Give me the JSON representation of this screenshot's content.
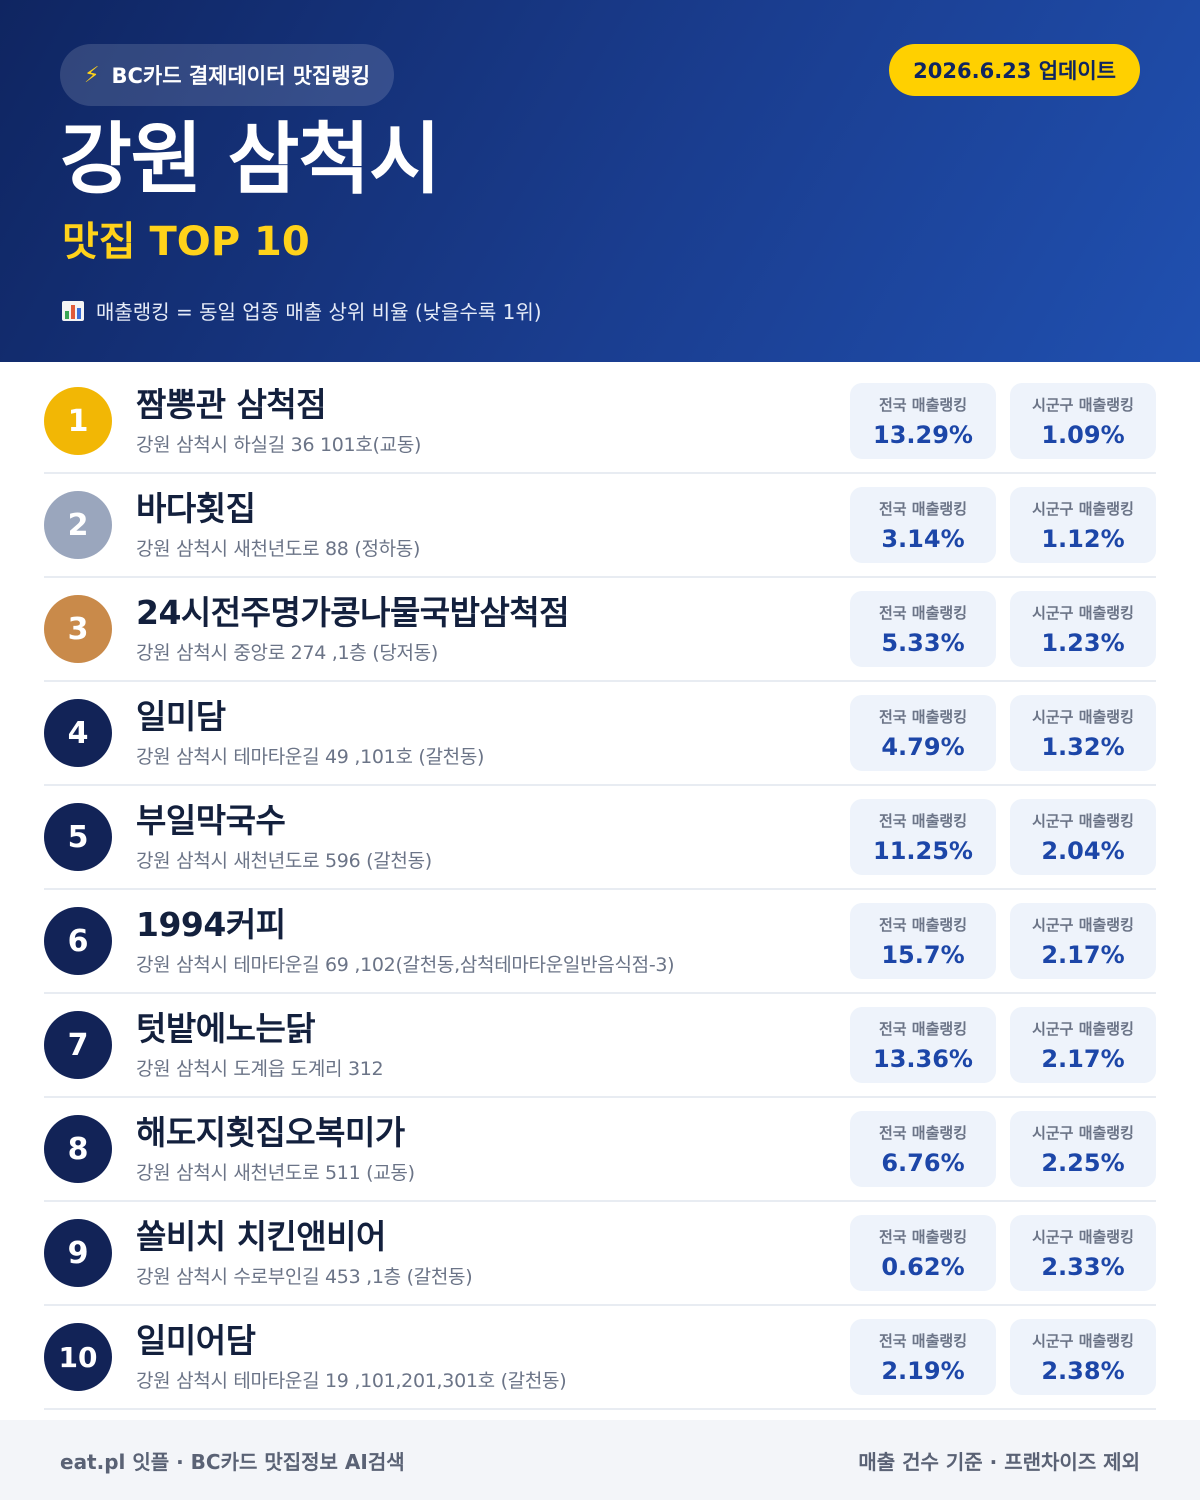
{
  "header": {
    "badge": "BC카드 결제데이터 맛집랭킹",
    "update": "2026.6.23 업데이트",
    "title": "강원 삼척시",
    "subtitle": "맛집 TOP 10",
    "note": "매출랭킹 = 동일 업종 매출 상위 비율 (낮을수록 1위)",
    "icons": {
      "badge": "lightning-icon",
      "note": "bar-chart-icon"
    }
  },
  "labels": {
    "national": "전국 매출랭킹",
    "local": "시군구 매출랭킹"
  },
  "colors": {
    "gold": "#f2b705",
    "silver": "#9aa6bd",
    "bronze": "#c98a4a",
    "navy": "#122357",
    "accent": "#ffd000"
  },
  "items": [
    {
      "rank": "1",
      "name": "짬뽕관 삼척점",
      "address": "강원 삼척시 하실길 36 101호(교동)",
      "national": "13.29%",
      "local": "1.09%"
    },
    {
      "rank": "2",
      "name": "바다횟집",
      "address": "강원 삼척시 새천년도로 88 (정하동)",
      "national": "3.14%",
      "local": "1.12%"
    },
    {
      "rank": "3",
      "name": "24시전주명가콩나물국밥삼척점",
      "address": "강원 삼척시 중앙로 274 ,1층 (당저동)",
      "national": "5.33%",
      "local": "1.23%"
    },
    {
      "rank": "4",
      "name": "일미담",
      "address": "강원 삼척시 테마타운길 49 ,101호 (갈천동)",
      "national": "4.79%",
      "local": "1.32%"
    },
    {
      "rank": "5",
      "name": "부일막국수",
      "address": "강원 삼척시 새천년도로 596 (갈천동)",
      "national": "11.25%",
      "local": "2.04%"
    },
    {
      "rank": "6",
      "name": "1994커피",
      "address": "강원 삼척시 테마타운길 69 ,102(갈천동,삼척테마타운일반음식점-3)",
      "national": "15.7%",
      "local": "2.17%"
    },
    {
      "rank": "7",
      "name": "텃밭에노는닭",
      "address": "강원 삼척시 도계읍 도계리 312",
      "national": "13.36%",
      "local": "2.17%"
    },
    {
      "rank": "8",
      "name": "해도지횟집오복미가",
      "address": "강원 삼척시 새천년도로 511 (교동)",
      "national": "6.76%",
      "local": "2.25%"
    },
    {
      "rank": "9",
      "name": "쏠비치 치킨앤비어",
      "address": "강원 삼척시 수로부인길 453 ,1층 (갈천동)",
      "national": "0.62%",
      "local": "2.33%"
    },
    {
      "rank": "10",
      "name": "일미어담",
      "address": "강원 삼척시 테마타운길 19 ,101,201,301호 (갈천동)",
      "national": "2.19%",
      "local": "2.38%"
    }
  ],
  "footer": {
    "left": "eat.pl 잇플 · BC카드 맛집정보 AI검색",
    "right": "매출 건수 기준 · 프랜차이즈 제외"
  }
}
